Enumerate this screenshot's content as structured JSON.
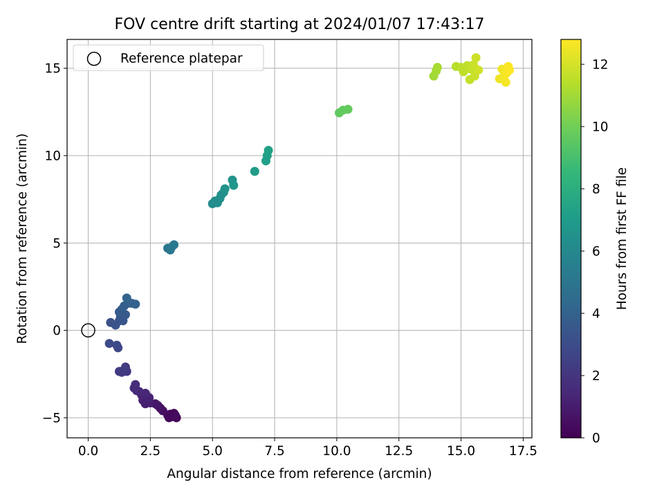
{
  "chart_data": {
    "type": "scatter",
    "title": "FOV centre drift starting at 2024/01/07 17:43:17",
    "xlabel": "Angular distance from reference (arcmin)",
    "ylabel": "Rotation from reference (arcmin)",
    "xlim": [
      -0.85,
      17.85
    ],
    "ylim": [
      -6.15,
      16.65
    ],
    "xticks": [
      0.0,
      2.5,
      5.0,
      7.5,
      10.0,
      12.5,
      15.0,
      17.5
    ],
    "xtick_labels": [
      "0.0",
      "2.5",
      "5.0",
      "7.5",
      "10.0",
      "12.5",
      "15.0",
      "17.5"
    ],
    "yticks": [
      -5,
      0,
      5,
      10,
      15
    ],
    "ytick_labels": [
      "−5",
      "0",
      "5",
      "10",
      "15"
    ],
    "grid": true,
    "legend": {
      "placement": "top-left",
      "label": "Reference platepar",
      "marker": "open-circle"
    },
    "reference_point": {
      "x": 0.0,
      "y": 0.0
    },
    "colorbar": {
      "label": "Hours from first FF file",
      "colormap": "viridis",
      "range": [
        0,
        12.8
      ],
      "ticks": [
        0,
        2,
        4,
        6,
        8,
        10,
        12
      ],
      "tick_labels": [
        "0",
        "2",
        "4",
        "6",
        "8",
        "10",
        "12"
      ],
      "stops": [
        "#440154",
        "#482878",
        "#3e4989",
        "#31688e",
        "#26828e",
        "#1f9e89",
        "#35b779",
        "#6ece58",
        "#b5de2b",
        "#fde725"
      ]
    },
    "series": [
      {
        "points": [
          {
            "x": 3.3,
            "y": -4.8,
            "t": 0.0
          },
          {
            "x": 3.5,
            "y": -4.9,
            "t": 0.05
          },
          {
            "x": 3.25,
            "y": -5.0,
            "t": 0.1
          },
          {
            "x": 3.45,
            "y": -4.75,
            "t": 0.15
          },
          {
            "x": 3.55,
            "y": -5.0,
            "t": 0.2
          },
          {
            "x": 3.35,
            "y": -4.95,
            "t": 0.25
          },
          {
            "x": 3.2,
            "y": -4.85,
            "t": 0.3
          },
          {
            "x": 3.5,
            "y": -4.85,
            "t": 0.35
          },
          {
            "x": 3.0,
            "y": -4.6,
            "t": 0.5
          },
          {
            "x": 2.9,
            "y": -4.45,
            "t": 0.6
          },
          {
            "x": 2.8,
            "y": -4.3,
            "t": 0.7
          },
          {
            "x": 2.7,
            "y": -4.2,
            "t": 0.8
          },
          {
            "x": 2.5,
            "y": -4.15,
            "t": 0.9
          },
          {
            "x": 2.4,
            "y": -4.1,
            "t": 1.0
          },
          {
            "x": 2.3,
            "y": -4.2,
            "t": 1.1
          },
          {
            "x": 2.2,
            "y": -4.0,
            "t": 1.15
          },
          {
            "x": 2.45,
            "y": -3.85,
            "t": 1.2
          },
          {
            "x": 2.15,
            "y": -3.7,
            "t": 1.3
          },
          {
            "x": 2.3,
            "y": -3.6,
            "t": 1.35
          },
          {
            "x": 2.05,
            "y": -3.5,
            "t": 1.45
          },
          {
            "x": 1.95,
            "y": -3.45,
            "t": 1.5
          },
          {
            "x": 1.85,
            "y": -3.3,
            "t": 1.6
          },
          {
            "x": 1.9,
            "y": -3.1,
            "t": 1.7
          },
          {
            "x": 1.55,
            "y": -2.35,
            "t": 2.0
          },
          {
            "x": 1.45,
            "y": -2.25,
            "t": 2.1
          },
          {
            "x": 1.35,
            "y": -2.4,
            "t": 2.2
          },
          {
            "x": 1.25,
            "y": -2.35,
            "t": 2.25
          },
          {
            "x": 1.5,
            "y": -2.1,
            "t": 2.3
          },
          {
            "x": 1.2,
            "y": -1.0,
            "t": 2.8
          },
          {
            "x": 1.15,
            "y": -0.85,
            "t": 2.85
          },
          {
            "x": 0.85,
            "y": -0.75,
            "t": 2.9
          },
          {
            "x": 0.9,
            "y": 0.45,
            "t": 3.2
          },
          {
            "x": 1.1,
            "y": 0.3,
            "t": 3.3
          },
          {
            "x": 1.25,
            "y": 0.55,
            "t": 3.35
          },
          {
            "x": 1.4,
            "y": 0.55,
            "t": 3.4
          },
          {
            "x": 1.3,
            "y": 0.8,
            "t": 3.5
          },
          {
            "x": 1.5,
            "y": 0.9,
            "t": 3.6
          },
          {
            "x": 1.25,
            "y": 1.05,
            "t": 3.65
          },
          {
            "x": 1.35,
            "y": 1.2,
            "t": 3.7
          },
          {
            "x": 1.45,
            "y": 1.4,
            "t": 3.8
          },
          {
            "x": 1.6,
            "y": 1.55,
            "t": 3.9
          },
          {
            "x": 1.75,
            "y": 1.55,
            "t": 3.95
          },
          {
            "x": 1.9,
            "y": 1.5,
            "t": 4.0
          },
          {
            "x": 1.55,
            "y": 1.85,
            "t": 4.1
          },
          {
            "x": 3.2,
            "y": 4.7,
            "t": 5.0
          },
          {
            "x": 3.3,
            "y": 4.6,
            "t": 5.05
          },
          {
            "x": 3.35,
            "y": 4.75,
            "t": 5.1
          },
          {
            "x": 3.45,
            "y": 4.9,
            "t": 5.15
          },
          {
            "x": 5.0,
            "y": 7.25,
            "t": 6.2
          },
          {
            "x": 5.2,
            "y": 7.3,
            "t": 6.25
          },
          {
            "x": 5.1,
            "y": 7.4,
            "t": 6.3
          },
          {
            "x": 5.3,
            "y": 7.55,
            "t": 6.35
          },
          {
            "x": 5.35,
            "y": 7.75,
            "t": 6.4
          },
          {
            "x": 5.45,
            "y": 7.9,
            "t": 6.45
          },
          {
            "x": 5.5,
            "y": 8.1,
            "t": 6.5
          },
          {
            "x": 5.8,
            "y": 8.6,
            "t": 6.6
          },
          {
            "x": 5.85,
            "y": 8.3,
            "t": 6.65
          },
          {
            "x": 6.7,
            "y": 9.1,
            "t": 7.0
          },
          {
            "x": 7.15,
            "y": 9.7,
            "t": 7.2
          },
          {
            "x": 7.2,
            "y": 10.0,
            "t": 7.25
          },
          {
            "x": 7.25,
            "y": 10.3,
            "t": 7.3
          },
          {
            "x": 10.1,
            "y": 12.45,
            "t": 9.6
          },
          {
            "x": 10.25,
            "y": 12.6,
            "t": 9.65
          },
          {
            "x": 10.45,
            "y": 12.65,
            "t": 9.7
          },
          {
            "x": 13.9,
            "y": 14.55,
            "t": 11.0
          },
          {
            "x": 14.0,
            "y": 14.85,
            "t": 11.05
          },
          {
            "x": 14.05,
            "y": 15.05,
            "t": 11.1
          },
          {
            "x": 14.8,
            "y": 15.1,
            "t": 11.4
          },
          {
            "x": 15.0,
            "y": 15.05,
            "t": 11.5
          },
          {
            "x": 15.1,
            "y": 14.8,
            "t": 11.55
          },
          {
            "x": 15.25,
            "y": 15.15,
            "t": 11.6
          },
          {
            "x": 15.4,
            "y": 14.95,
            "t": 11.65
          },
          {
            "x": 15.35,
            "y": 14.35,
            "t": 11.7
          },
          {
            "x": 15.55,
            "y": 14.55,
            "t": 11.75
          },
          {
            "x": 15.5,
            "y": 15.2,
            "t": 11.8
          },
          {
            "x": 15.6,
            "y": 15.6,
            "t": 11.85
          },
          {
            "x": 15.7,
            "y": 14.9,
            "t": 11.9
          },
          {
            "x": 16.55,
            "y": 14.4,
            "t": 12.5
          },
          {
            "x": 16.65,
            "y": 14.95,
            "t": 12.55
          },
          {
            "x": 16.75,
            "y": 14.6,
            "t": 12.6
          },
          {
            "x": 16.8,
            "y": 14.2,
            "t": 12.65
          },
          {
            "x": 16.85,
            "y": 14.75,
            "t": 12.7
          },
          {
            "x": 16.9,
            "y": 15.1,
            "t": 12.75
          },
          {
            "x": 16.95,
            "y": 14.9,
            "t": 12.8
          }
        ]
      }
    ]
  }
}
